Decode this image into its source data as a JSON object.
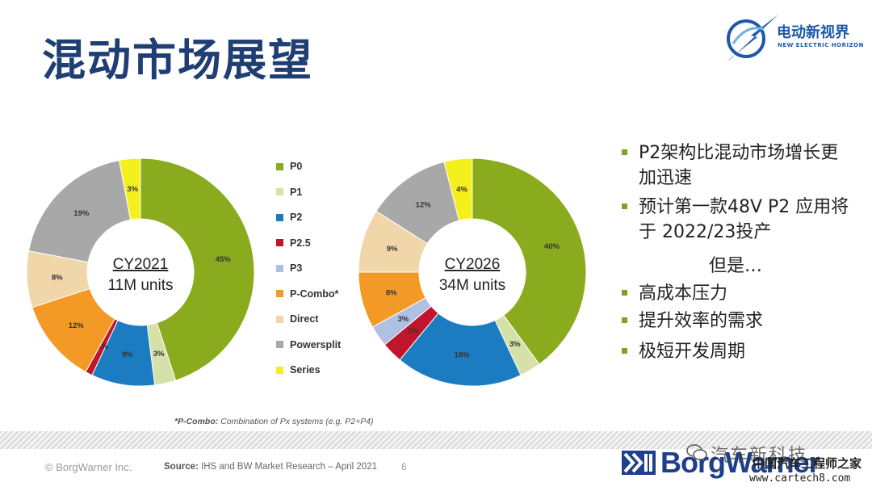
{
  "page": {
    "title": "混动市场展望",
    "logo": {
      "cn": "电动新视界",
      "en": "NEW ELECTRIC HORIZON"
    },
    "bullets": [
      "P2架构比混动市场增长更加迅速",
      "预计第一款48V P2 应用将于 2022/23投产",
      "高成本压力",
      "提升效率的需求",
      "极短开发周期"
    ],
    "but_text": "但是…",
    "footnote_label": "*P-Combo:",
    "footnote_text": "Combination of Px systems (e.g. P2+P4)",
    "copyright": "© BorgWarner Inc.",
    "source_label": "Source:",
    "source_text": "IHS and BW Market Research – April 2021",
    "page_number": "6",
    "brand": "BorgWarner",
    "watermark": {
      "line1": "汽车新科技",
      "line2": "中国汽车工程师之家",
      "line3": "www.cartech8.com"
    }
  },
  "colors": {
    "title": "#1f3e74",
    "bullet": "#7aa424",
    "P0": "#8aab1e",
    "P1": "#d5e1a8",
    "P2": "#1c7cc1",
    "P2.5": "#c0152b",
    "P3": "#b0c0e2",
    "P-Combo*": "#f39a26",
    "Direct": "#f0d6a8",
    "Powersplit": "#a8a8a8",
    "Series": "#f4f01e"
  },
  "chart_data": [
    {
      "type": "pie",
      "donut": true,
      "center_title": "CY2021",
      "center_subtitle": "11M units",
      "categories": [
        "P0",
        "P1",
        "P2",
        "P2.5",
        "P3",
        "P-Combo*",
        "Direct",
        "Powersplit",
        "Series"
      ],
      "values": [
        45,
        3,
        9,
        1,
        0,
        12,
        8,
        19,
        3
      ],
      "labels": [
        "45%",
        "3%",
        "9%",
        "1%",
        "",
        "12%",
        "8%",
        "19%",
        "3%"
      ],
      "legend_position": "right"
    },
    {
      "type": "pie",
      "donut": true,
      "center_title": "CY2026",
      "center_subtitle": "34M units",
      "categories": [
        "P0",
        "P1",
        "P2",
        "P2.5",
        "P3",
        "P-Combo*",
        "Direct",
        "Powersplit",
        "Series"
      ],
      "values": [
        40,
        3,
        18,
        3,
        3,
        8,
        9,
        12,
        4
      ],
      "labels": [
        "40%",
        "3%",
        "18%",
        "3%",
        "3%",
        "8%",
        "9%",
        "12%",
        "4%"
      ],
      "legend_position": "left"
    }
  ]
}
